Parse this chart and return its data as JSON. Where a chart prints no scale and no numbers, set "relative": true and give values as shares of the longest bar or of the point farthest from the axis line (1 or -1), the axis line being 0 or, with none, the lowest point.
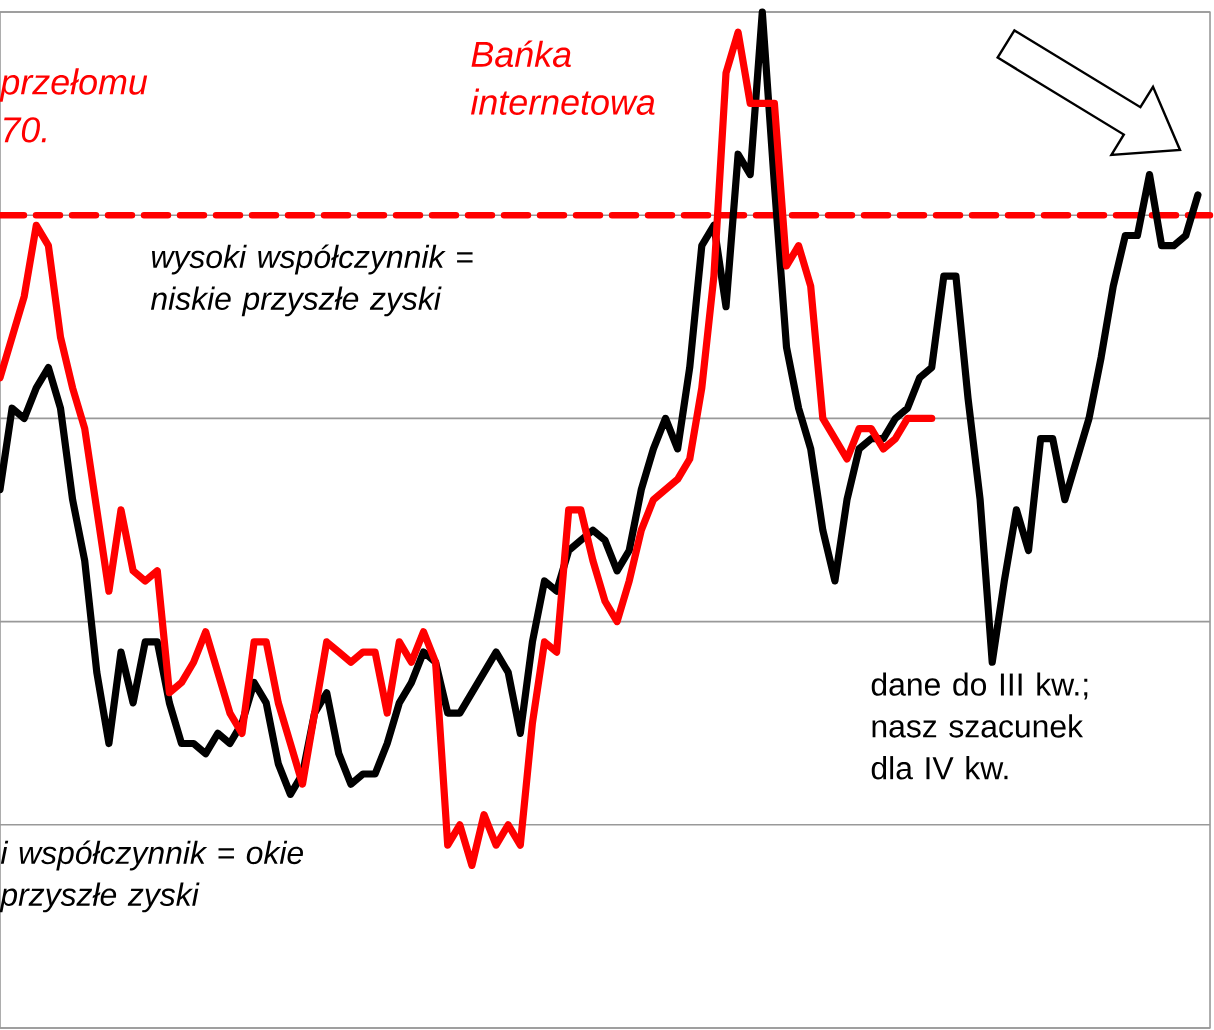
{
  "chart_data": {
    "type": "line",
    "relative": true,
    "grid": "y",
    "categories": [
      null,
      null,
      null,
      null,
      null,
      null,
      null,
      null,
      null,
      null,
      null,
      null,
      null,
      null,
      null,
      null,
      null,
      null,
      null,
      null,
      null,
      null,
      null,
      null,
      null,
      null,
      null,
      null,
      null,
      null,
      null,
      null,
      null,
      null,
      null,
      null,
      null,
      null,
      null,
      null,
      null,
      null,
      null,
      null,
      null,
      null,
      null,
      null,
      null,
      null,
      null,
      null,
      null,
      null,
      null,
      null,
      null,
      null,
      null,
      null,
      null,
      null,
      null,
      null,
      null,
      null,
      null,
      null,
      null,
      null,
      null,
      null,
      null,
      null,
      null,
      null,
      null,
      null,
      null,
      null,
      null,
      null,
      null,
      null,
      null,
      null,
      null,
      null,
      null,
      null,
      null,
      null,
      null,
      null,
      null,
      null,
      null,
      null,
      null,
      null
    ],
    "series": [
      {
        "color": "#000000",
        "values": [
          0.53,
          0.61,
          0.6,
          0.63,
          0.65,
          0.61,
          0.52,
          0.46,
          0.35,
          0.28,
          0.37,
          0.32,
          0.38,
          0.38,
          0.32,
          0.28,
          0.28,
          0.27,
          0.29,
          0.28,
          0.3,
          0.34,
          0.32,
          0.26,
          0.23,
          0.25,
          0.31,
          0.33,
          0.27,
          0.24,
          0.25,
          0.25,
          0.28,
          0.32,
          0.34,
          0.37,
          0.36,
          0.31,
          0.31,
          0.33,
          0.35,
          0.37,
          0.35,
          0.29,
          0.38,
          0.44,
          0.43,
          0.47,
          0.48,
          0.49,
          0.48,
          0.45,
          0.47,
          0.53,
          0.57,
          0.6,
          0.57,
          0.65,
          0.77,
          0.79,
          0.71,
          0.86,
          0.84,
          1.0,
          0.83,
          0.67,
          0.61,
          0.57,
          0.49,
          0.44,
          0.52,
          0.57,
          0.58,
          0.58,
          0.6,
          0.61,
          0.64,
          0.65,
          0.74,
          0.74,
          0.62,
          0.52,
          0.36,
          0.44,
          0.51,
          0.47,
          0.58,
          0.58,
          0.52,
          0.56,
          0.6,
          0.66,
          0.73,
          0.78,
          0.78,
          0.84,
          0.77,
          0.77,
          0.78,
          0.82
        ]
      },
      {
        "color": "#ff0000",
        "values": [
          0.64,
          0.68,
          0.72,
          0.79,
          0.77,
          0.68,
          0.63,
          0.59,
          0.51,
          0.43,
          0.51,
          0.45,
          0.44,
          0.45,
          0.33,
          0.34,
          0.36,
          0.39,
          0.35,
          0.31,
          0.29,
          0.38,
          0.38,
          0.32,
          0.28,
          0.24,
          0.31,
          0.38,
          0.37,
          0.36,
          0.37,
          0.37,
          0.31,
          0.38,
          0.36,
          0.39,
          0.36,
          0.18,
          0.2,
          0.16,
          0.21,
          0.18,
          0.2,
          0.18,
          0.3,
          0.38,
          0.37,
          0.51,
          0.51,
          0.46,
          0.42,
          0.4,
          0.44,
          0.49,
          0.52,
          0.53,
          0.54,
          0.56,
          0.63,
          0.74,
          0.94,
          0.98,
          0.91,
          0.91,
          0.91,
          0.75,
          0.77,
          0.73,
          0.6,
          0.58,
          0.56,
          0.59,
          0.59,
          0.57,
          0.58,
          0.6,
          0.6,
          0.6,
          null,
          null,
          null,
          null,
          null,
          null,
          null,
          null,
          null,
          null,
          null,
          null,
          null,
          null,
          null,
          null,
          null,
          null,
          null,
          null,
          null,
          null
        ]
      }
    ],
    "ref_lines": [
      {
        "axis": "y",
        "value": 0.8,
        "color": "#ff0000",
        "line_style": "dashed"
      }
    ],
    "annotations": [
      "przełomu 70.",
      "Bańka internetowa",
      "wysoki współczynnik = niskie przyszłe zyski",
      "i współczynnik = okie przyszłe zyski",
      "dane do III kw.; nasz szacunek dla IV kw."
    ]
  }
}
